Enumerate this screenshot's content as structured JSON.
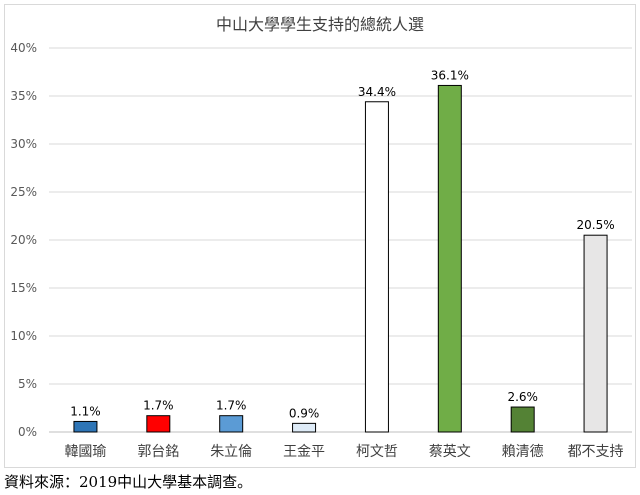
{
  "chart_data": {
    "type": "bar",
    "title": "中山大學學生支持的總統人選",
    "categories": [
      "韓國瑜",
      "郭台銘",
      "朱立倫",
      "王金平",
      "柯文哲",
      "蔡英文",
      "賴清德",
      "都不支持"
    ],
    "values": [
      1.1,
      1.7,
      1.7,
      0.9,
      34.4,
      36.1,
      2.6,
      20.5
    ],
    "value_labels": [
      "1.1%",
      "1.7%",
      "1.7%",
      "0.9%",
      "34.4%",
      "36.1%",
      "2.6%",
      "20.5%"
    ],
    "bar_colors": [
      "#2e75b6",
      "#ff0000",
      "#5b9bd5",
      "#deebf7",
      "#ffffff",
      "#70ad47",
      "#548235",
      "#e7e6e6"
    ],
    "ylim": [
      0,
      40
    ],
    "yticks": [
      0,
      5,
      10,
      15,
      20,
      25,
      30,
      35,
      40
    ],
    "ytick_labels": [
      "0%",
      "5%",
      "10%",
      "15%",
      "20%",
      "25%",
      "30%",
      "35%",
      "40%"
    ],
    "xlabel": "",
    "ylabel": "",
    "grid": true,
    "legend": "none"
  },
  "source": "資料來源：2019中山大學基本調查。"
}
